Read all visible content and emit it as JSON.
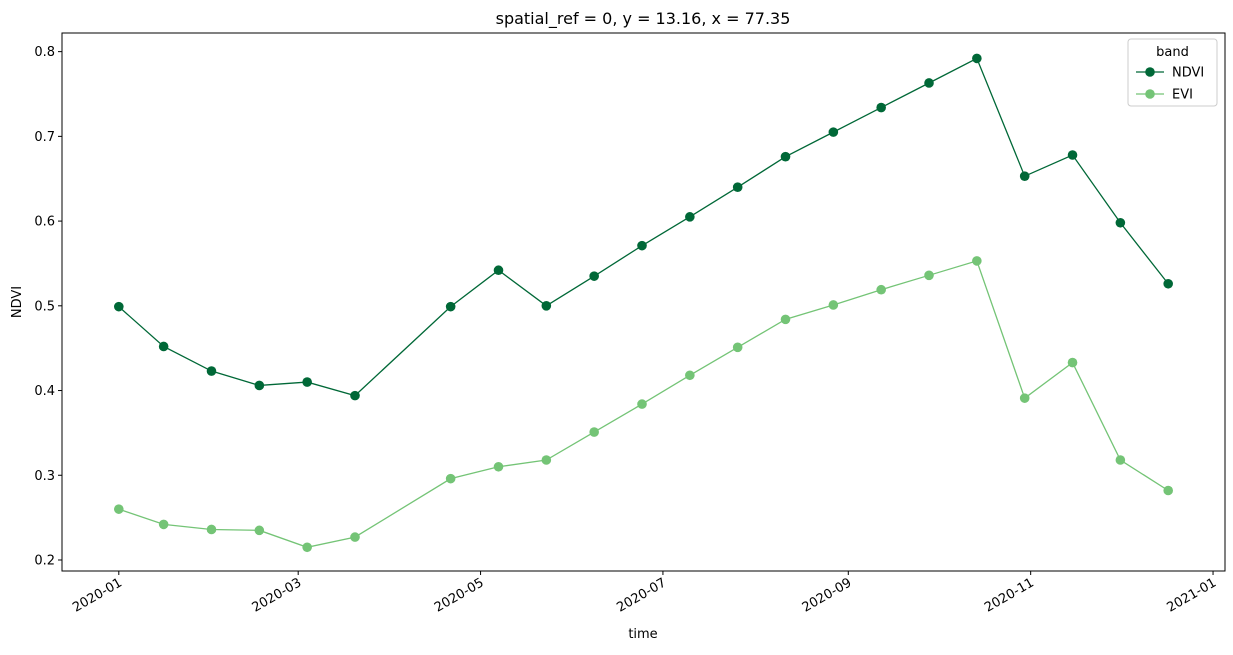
{
  "chart_data": {
    "type": "line",
    "title": "spatial_ref = 0, y = 13.16, x = 77.35",
    "xlabel": "time",
    "ylabel": "NDVI",
    "x": [
      "2020-01-01",
      "2020-01-16",
      "2020-02-01",
      "2020-02-17",
      "2020-03-04",
      "2020-03-20",
      "2020-04-21",
      "2020-05-07",
      "2020-05-23",
      "2020-06-08",
      "2020-06-24",
      "2020-07-10",
      "2020-07-26",
      "2020-08-11",
      "2020-08-27",
      "2020-09-12",
      "2020-09-28",
      "2020-10-14",
      "2020-10-30",
      "2020-11-15",
      "2020-12-01",
      "2020-12-17"
    ],
    "series": [
      {
        "name": "NDVI",
        "color": "#006837",
        "values": [
          0.499,
          0.452,
          0.423,
          0.406,
          0.41,
          0.394,
          0.499,
          0.542,
          0.5,
          0.535,
          0.571,
          0.605,
          0.64,
          0.676,
          0.705,
          0.734,
          0.763,
          0.792,
          0.653,
          0.678,
          0.598,
          0.526
        ]
      },
      {
        "name": "EVI",
        "color": "#74c476",
        "values": [
          0.26,
          0.242,
          0.236,
          0.235,
          0.215,
          0.227,
          0.296,
          0.31,
          0.318,
          0.351,
          0.384,
          0.418,
          0.451,
          0.484,
          0.501,
          0.519,
          0.536,
          0.553,
          0.391,
          0.433,
          0.318,
          0.282
        ]
      }
    ],
    "xlim": [
      "2019-12-13",
      "2021-01-05"
    ],
    "ylim": [
      0.187,
      0.822
    ],
    "x_ticks": [
      {
        "date": "2020-01-01",
        "label": "2020-01"
      },
      {
        "date": "2020-03-01",
        "label": "2020-03"
      },
      {
        "date": "2020-05-01",
        "label": "2020-05"
      },
      {
        "date": "2020-07-01",
        "label": "2020-07"
      },
      {
        "date": "2020-09-01",
        "label": "2020-09"
      },
      {
        "date": "2020-11-01",
        "label": "2020-11"
      },
      {
        "date": "2021-01-01",
        "label": "2021-01"
      }
    ],
    "y_ticks": [
      0.2,
      0.3,
      0.4,
      0.5,
      0.6,
      0.7,
      0.8
    ],
    "y_tick_labels": [
      "0.2",
      "0.3",
      "0.4",
      "0.5",
      "0.6",
      "0.7",
      "0.8"
    ],
    "legend": {
      "title": "band",
      "placement": "top-right"
    },
    "grid": false
  }
}
